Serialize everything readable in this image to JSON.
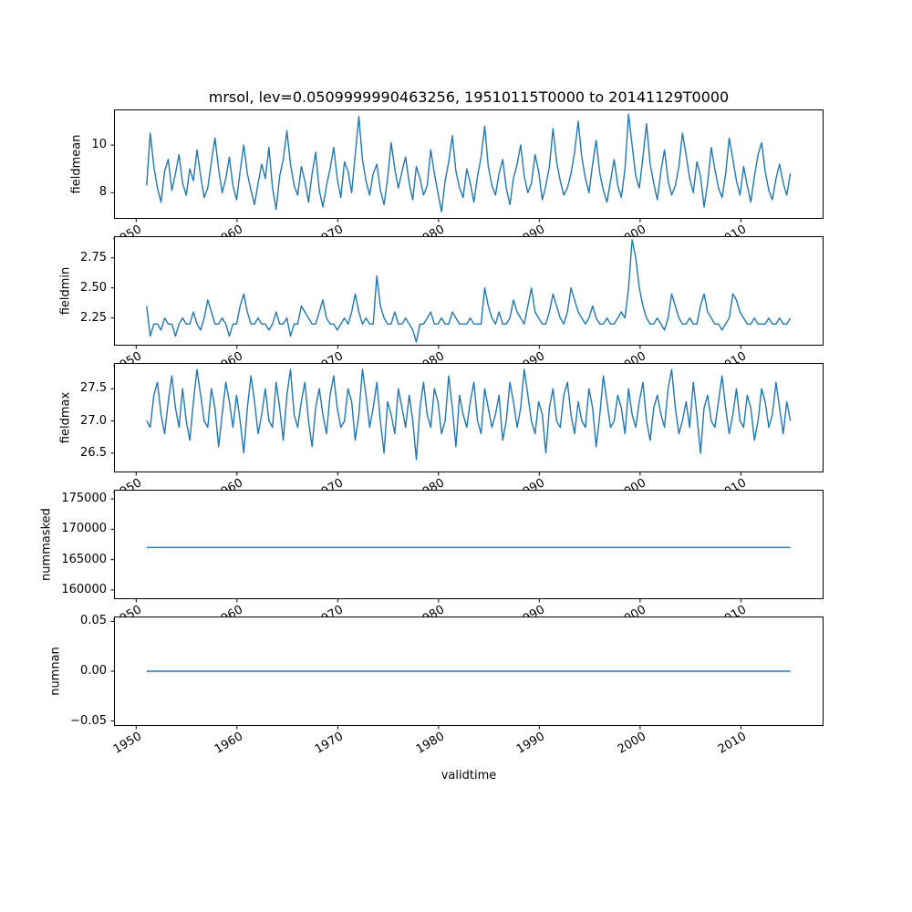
{
  "title": "mrsol, lev=0.0509999990463256, 19510115T0000 to 20141129T0000",
  "xlabel": "validtime",
  "line_color": "#1f77b4",
  "xlim": [
    1947.8,
    2018.2
  ],
  "xticks": [
    1950,
    1960,
    1970,
    1980,
    1990,
    2000,
    2010
  ],
  "x_tick_labels": [
    "1950",
    "1960",
    "1970",
    "1980",
    "1990",
    "2000",
    "2010"
  ],
  "x_start": 1951.04,
  "x_end": 2014.91,
  "chart_data": [
    {
      "type": "line",
      "name": "fieldmean",
      "ylabel": "fieldmean",
      "ylim": [
        6.9,
        11.5
      ],
      "yticks": [
        8,
        10
      ],
      "ytick_labels": [
        "8",
        "10"
      ],
      "values": [
        8.3,
        10.5,
        9.1,
        8.2,
        7.6,
        8.9,
        9.4,
        8.1,
        8.8,
        9.6,
        8.4,
        7.9,
        9.0,
        8.5,
        9.8,
        8.7,
        7.8,
        8.2,
        9.3,
        10.3,
        9.0,
        8.0,
        8.6,
        9.5,
        8.3,
        7.7,
        8.9,
        10.0,
        8.8,
        8.1,
        7.5,
        8.4,
        9.2,
        8.6,
        9.9,
        8.2,
        7.3,
        8.7,
        9.4,
        10.6,
        9.2,
        8.3,
        7.9,
        9.1,
        8.5,
        7.6,
        8.8,
        9.7,
        8.1,
        7.4,
        8.3,
        9.0,
        9.9,
        8.6,
        7.8,
        9.3,
        8.9,
        8.0,
        9.6,
        11.2,
        9.4,
        8.5,
        7.9,
        8.8,
        9.2,
        8.1,
        7.5,
        8.6,
        10.1,
        9.0,
        8.2,
        8.9,
        9.5,
        8.4,
        7.7,
        9.1,
        8.6,
        7.9,
        8.3,
        9.8,
        8.8,
        8.0,
        7.2,
        8.5,
        9.3,
        10.4,
        8.9,
        8.2,
        7.8,
        9.0,
        8.4,
        7.6,
        8.7,
        9.5,
        10.8,
        9.1,
        8.3,
        7.9,
        8.8,
        9.4,
        8.2,
        7.5,
        8.6,
        9.2,
        10.0,
        8.7,
        8.0,
        8.4,
        9.6,
        8.9,
        7.7,
        8.3,
        9.1,
        10.7,
        9.3,
        8.5,
        7.9,
        8.2,
        8.8,
        9.7,
        11.0,
        9.5,
        8.6,
        8.0,
        9.2,
        10.2,
        8.8,
        8.1,
        7.6,
        8.5,
        9.4,
        8.3,
        7.8,
        9.0,
        11.3,
        10.0,
        8.7,
        8.2,
        9.5,
        10.9,
        9.2,
        8.4,
        7.7,
        8.9,
        9.8,
        8.5,
        7.9,
        8.3,
        9.1,
        10.5,
        9.6,
        8.6,
        8.0,
        9.3,
        8.7,
        7.4,
        8.4,
        9.9,
        9.0,
        8.2,
        7.8,
        8.8,
        10.3,
        9.4,
        8.5,
        7.9,
        9.1,
        8.3,
        7.6,
        8.7,
        9.6,
        10.1,
        8.9,
        8.1,
        7.7,
        8.6,
        9.2,
        8.4,
        7.9,
        8.8
      ]
    },
    {
      "type": "line",
      "name": "fieldmin",
      "ylabel": "fieldmin",
      "ylim": [
        2.02,
        2.93
      ],
      "yticks": [
        2.25,
        2.5,
        2.75
      ],
      "ytick_labels": [
        "2.25",
        "2.50",
        "2.75"
      ],
      "values": [
        2.35,
        2.1,
        2.2,
        2.2,
        2.15,
        2.25,
        2.2,
        2.2,
        2.1,
        2.2,
        2.25,
        2.2,
        2.2,
        2.3,
        2.2,
        2.15,
        2.25,
        2.4,
        2.3,
        2.2,
        2.2,
        2.25,
        2.2,
        2.1,
        2.2,
        2.2,
        2.35,
        2.45,
        2.3,
        2.2,
        2.2,
        2.25,
        2.2,
        2.2,
        2.15,
        2.2,
        2.3,
        2.2,
        2.2,
        2.25,
        2.1,
        2.2,
        2.2,
        2.35,
        2.3,
        2.25,
        2.2,
        2.2,
        2.3,
        2.4,
        2.25,
        2.2,
        2.2,
        2.15,
        2.2,
        2.25,
        2.2,
        2.3,
        2.45,
        2.3,
        2.2,
        2.25,
        2.2,
        2.2,
        2.6,
        2.35,
        2.25,
        2.2,
        2.2,
        2.3,
        2.2,
        2.2,
        2.25,
        2.2,
        2.15,
        2.05,
        2.2,
        2.2,
        2.25,
        2.3,
        2.2,
        2.2,
        2.25,
        2.2,
        2.2,
        2.3,
        2.25,
        2.2,
        2.2,
        2.2,
        2.25,
        2.2,
        2.2,
        2.2,
        2.5,
        2.35,
        2.25,
        2.2,
        2.3,
        2.2,
        2.2,
        2.25,
        2.4,
        2.3,
        2.25,
        2.2,
        2.35,
        2.5,
        2.3,
        2.25,
        2.2,
        2.2,
        2.3,
        2.45,
        2.35,
        2.25,
        2.2,
        2.3,
        2.5,
        2.4,
        2.3,
        2.25,
        2.2,
        2.25,
        2.35,
        2.25,
        2.2,
        2.2,
        2.25,
        2.2,
        2.2,
        2.25,
        2.3,
        2.25,
        2.5,
        2.9,
        2.75,
        2.5,
        2.35,
        2.25,
        2.2,
        2.2,
        2.25,
        2.2,
        2.15,
        2.25,
        2.45,
        2.35,
        2.25,
        2.2,
        2.2,
        2.25,
        2.2,
        2.2,
        2.35,
        2.45,
        2.3,
        2.25,
        2.2,
        2.2,
        2.15,
        2.2,
        2.25,
        2.45,
        2.4,
        2.3,
        2.25,
        2.2,
        2.2,
        2.25,
        2.2,
        2.2,
        2.2,
        2.25,
        2.2,
        2.2,
        2.25,
        2.2,
        2.2,
        2.25
      ]
    },
    {
      "type": "line",
      "name": "fieldmax",
      "ylabel": "fieldmax",
      "ylim": [
        26.2,
        27.9
      ],
      "yticks": [
        26.5,
        27.0,
        27.5
      ],
      "ytick_labels": [
        "26.5",
        "27.0",
        "27.5"
      ],
      "values": [
        27.0,
        26.9,
        27.4,
        27.6,
        27.1,
        26.8,
        27.3,
        27.7,
        27.2,
        26.9,
        27.5,
        27.0,
        26.7,
        27.3,
        27.8,
        27.4,
        27.0,
        26.9,
        27.5,
        27.2,
        26.6,
        27.1,
        27.6,
        27.3,
        26.9,
        27.4,
        27.0,
        26.5,
        27.2,
        27.7,
        27.3,
        26.8,
        27.1,
        27.5,
        27.0,
        26.9,
        27.6,
        27.2,
        26.7,
        27.4,
        27.8,
        27.1,
        26.9,
        27.3,
        27.6,
        27.0,
        26.6,
        27.2,
        27.5,
        27.1,
        26.8,
        27.4,
        27.7,
        27.2,
        26.9,
        27.0,
        27.5,
        27.3,
        26.7,
        27.1,
        27.8,
        27.4,
        26.9,
        27.2,
        27.6,
        27.0,
        26.5,
        27.3,
        27.1,
        26.8,
        27.5,
        27.2,
        26.9,
        27.4,
        27.0,
        26.4,
        27.2,
        27.6,
        27.1,
        26.9,
        27.5,
        27.3,
        26.8,
        27.0,
        27.7,
        27.2,
        26.6,
        27.4,
        27.1,
        26.9,
        27.3,
        27.6,
        27.0,
        26.8,
        27.5,
        27.2,
        26.9,
        27.1,
        27.4,
        26.7,
        27.0,
        27.6,
        27.3,
        26.9,
        27.2,
        27.8,
        27.4,
        27.0,
        26.8,
        27.3,
        27.1,
        26.5,
        27.2,
        27.5,
        27.0,
        26.9,
        27.4,
        27.6,
        27.1,
        26.8,
        27.3,
        27.0,
        26.9,
        27.5,
        27.2,
        26.6,
        27.1,
        27.7,
        27.3,
        26.9,
        27.0,
        27.4,
        27.2,
        26.8,
        27.5,
        27.1,
        26.9,
        27.3,
        27.6,
        27.0,
        26.7,
        27.2,
        27.4,
        27.1,
        26.9,
        27.5,
        27.8,
        27.2,
        26.8,
        27.0,
        27.3,
        26.9,
        27.6,
        27.1,
        26.5,
        27.2,
        27.4,
        27.0,
        26.9,
        27.3,
        27.7,
        27.2,
        26.8,
        27.1,
        27.5,
        27.0,
        26.9,
        27.4,
        27.2,
        26.7,
        27.0,
        27.5,
        27.3,
        26.9,
        27.1,
        27.6,
        27.2,
        26.8,
        27.3,
        27.0
      ]
    },
    {
      "type": "line",
      "name": "nummasked",
      "ylabel": "nummasked",
      "ylim": [
        158500,
        176500
      ],
      "yticks": [
        160000,
        165000,
        170000,
        175000
      ],
      "ytick_labels": [
        "160000",
        "165000",
        "170000",
        "175000"
      ],
      "values": [
        167000,
        167000
      ]
    },
    {
      "type": "line",
      "name": "numnan",
      "ylabel": "numnan",
      "ylim": [
        -0.055,
        0.055
      ],
      "yticks": [
        -0.05,
        0,
        0.05
      ],
      "ytick_labels": [
        "−0.05",
        "0.00",
        "0.05"
      ],
      "values": [
        0,
        0
      ]
    }
  ]
}
